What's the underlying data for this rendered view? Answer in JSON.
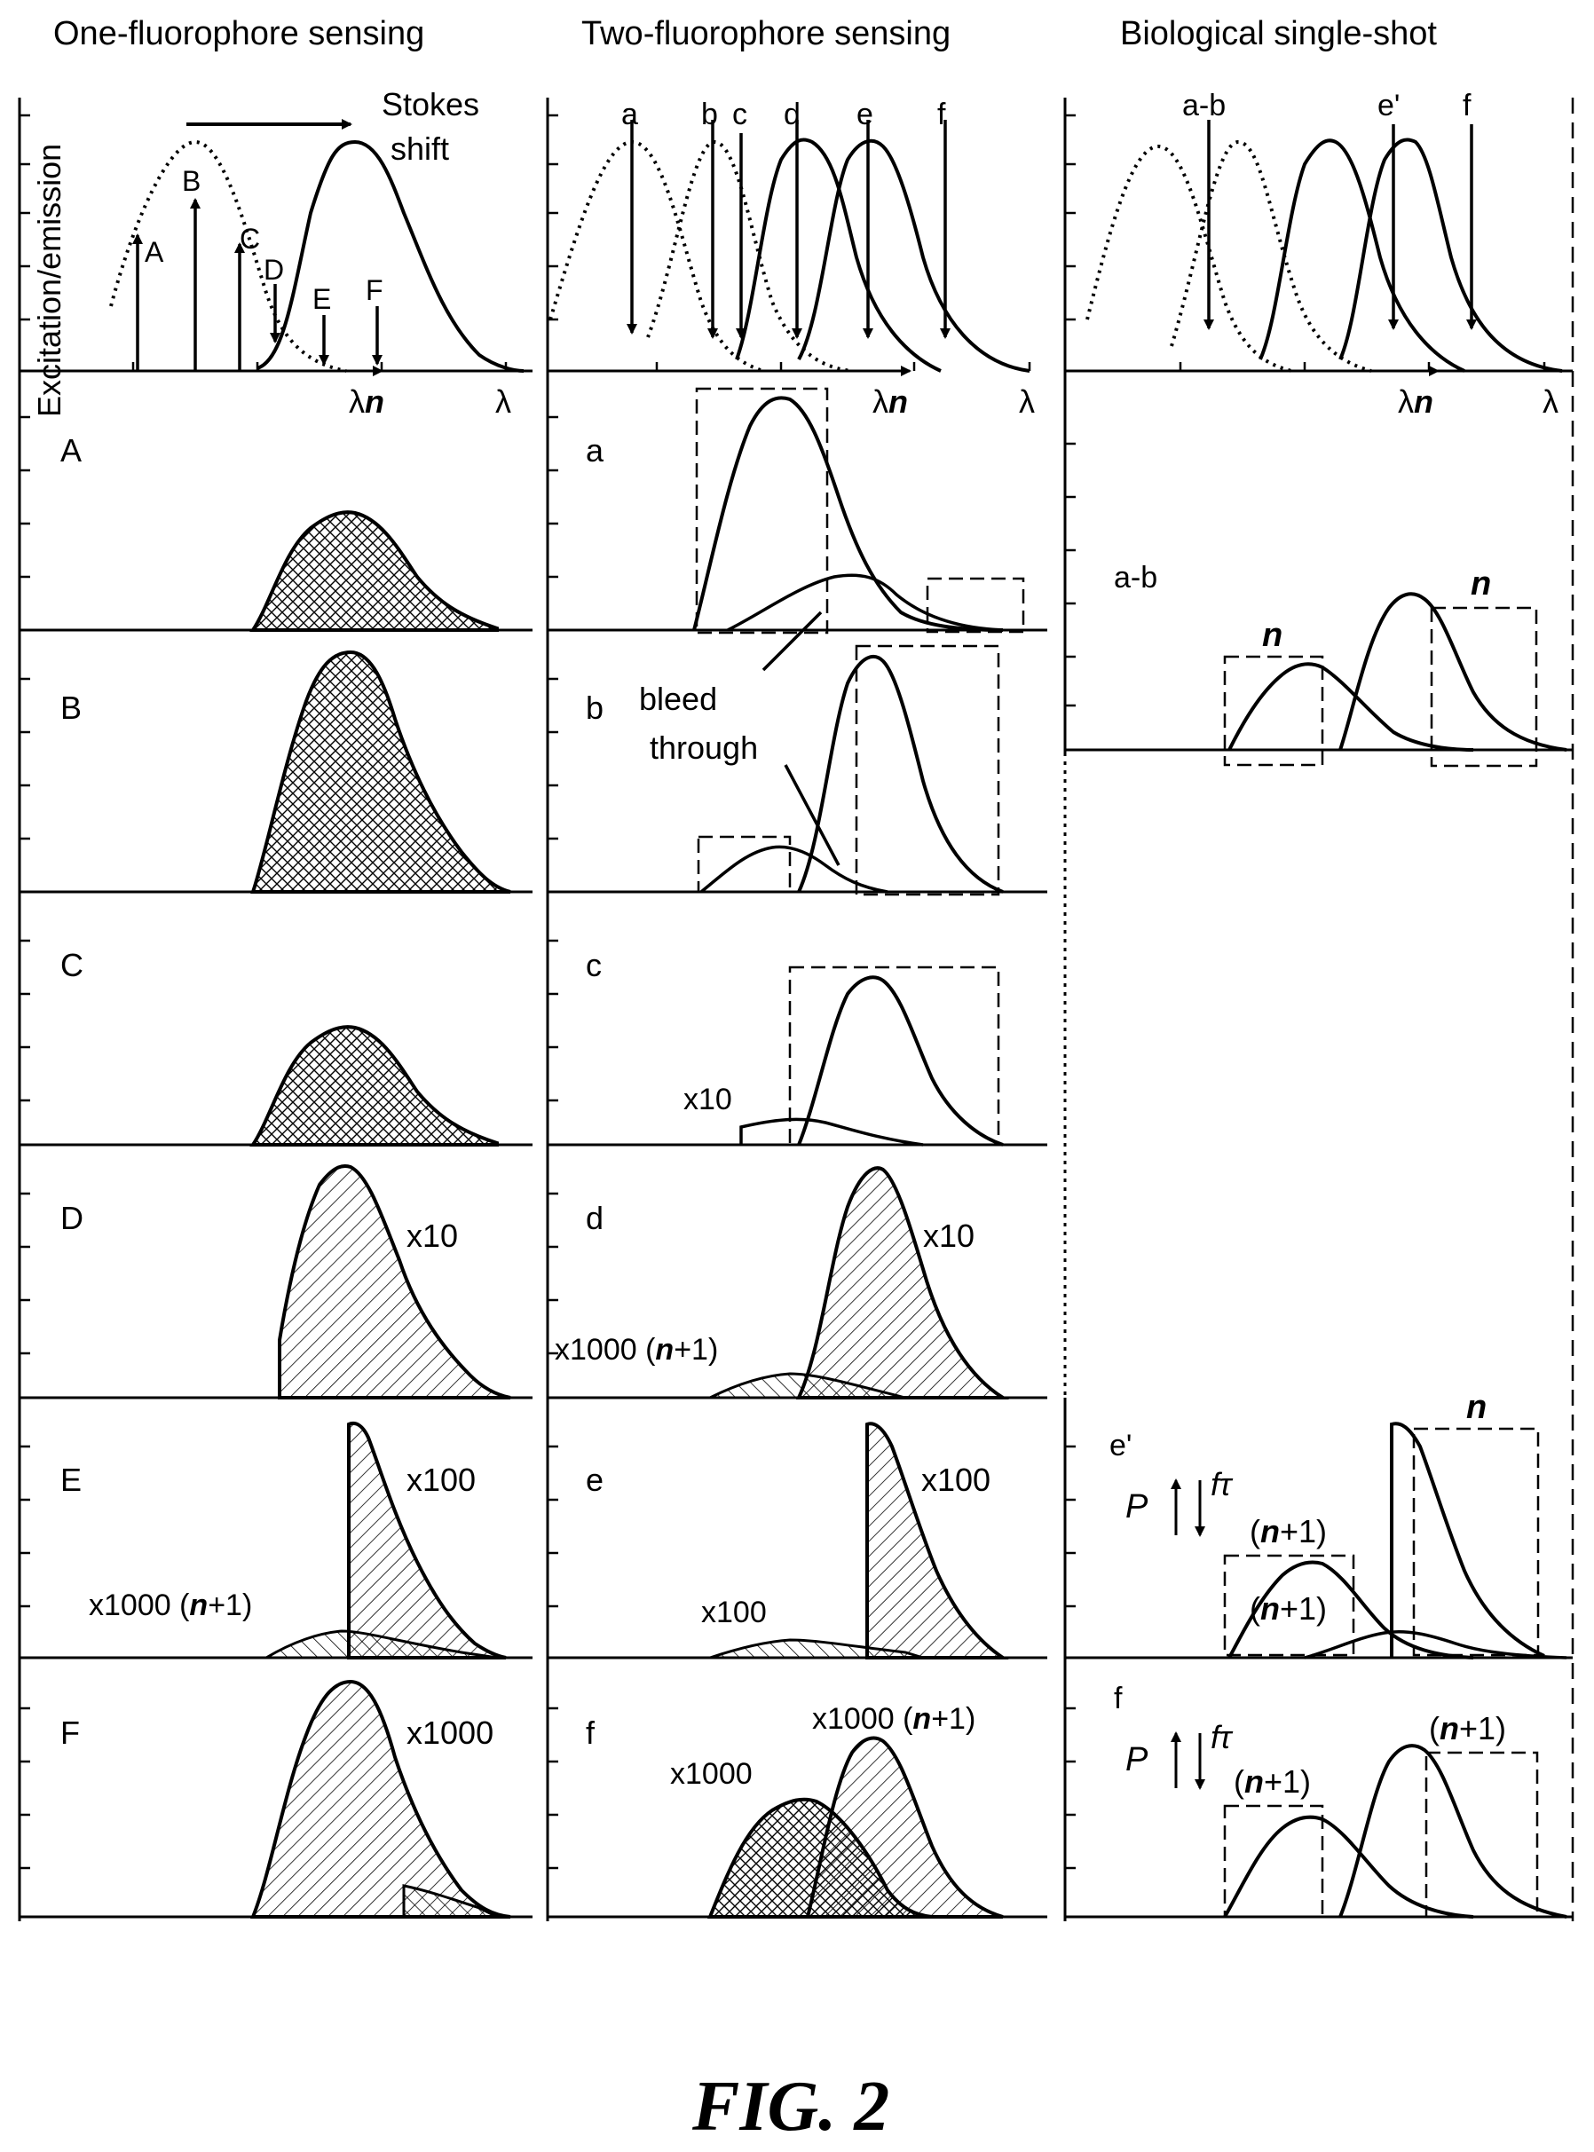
{
  "columns": {
    "one": "One-fluorophore sensing",
    "two": "Two-fluorophore sensing",
    "bio": "Biological single-shot"
  },
  "axis": {
    "ylabel": "Excitation/emission",
    "lambda": "λ",
    "lambda_n_prefix": "λ",
    "lambda_n_suffix": "n"
  },
  "top_one": {
    "stokes_1": "Stokes",
    "stokes_2": "shift",
    "arrows": [
      "A",
      "B",
      "C",
      "D",
      "E",
      "F"
    ]
  },
  "top_two": {
    "arrows": [
      "a",
      "b",
      "c",
      "d",
      "e",
      "f"
    ]
  },
  "top_bio": {
    "arrows": [
      "a-b",
      "e'",
      "f"
    ]
  },
  "col1_rows": [
    {
      "label": "A",
      "mult": ""
    },
    {
      "label": "B",
      "mult": ""
    },
    {
      "label": "C",
      "mult": ""
    },
    {
      "label": "D",
      "mult": "x10"
    },
    {
      "label": "E",
      "mult": "x100",
      "mult2": "x1000 (",
      "n": "n",
      "plus": "+1)"
    },
    {
      "label": "F",
      "mult": "x1000"
    }
  ],
  "col2_rows": [
    {
      "label": "a"
    },
    {
      "label": "b",
      "bleed_1": "bleed",
      "bleed_2": "through"
    },
    {
      "label": "c",
      "mult": "x10"
    },
    {
      "label": "d",
      "mult": "x10",
      "mult2": "x1000 (",
      "n": "n",
      "plus": "+1)"
    },
    {
      "label": "e",
      "mult": "x100",
      "mult2": "x100"
    },
    {
      "label": "f",
      "mult": "x1000 (",
      "n": "n",
      "plus": "+1)",
      "mult2": "x1000"
    }
  ],
  "col3": {
    "ab_label": "a-b",
    "n": "n",
    "e_label": "e'",
    "P": "P",
    "f": "f",
    "tau": "τ",
    "np1_open": "(",
    "np1_close": "+1)",
    "f_label": "f"
  },
  "caption": "FIG. 2"
}
